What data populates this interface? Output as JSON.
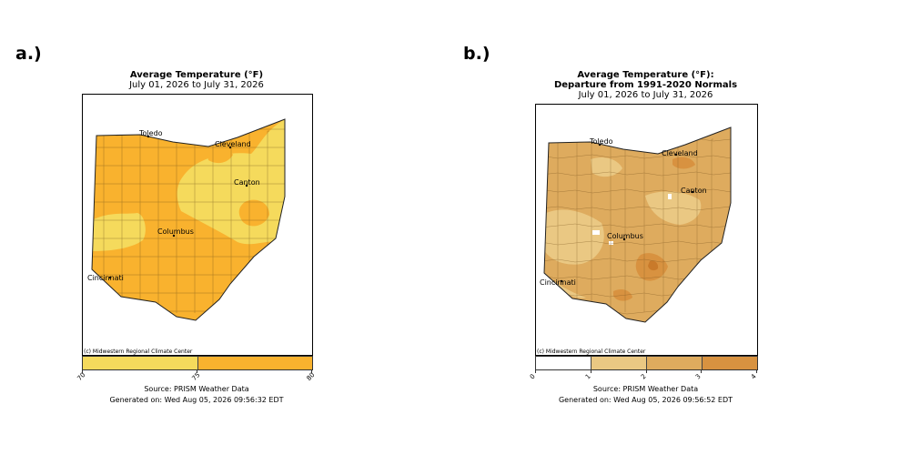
{
  "panels": [
    {
      "label": "a.)",
      "title": "Average Temperature (°F)",
      "subtitle": "July 01, 2026 to July 31, 2026",
      "credit": "(c) Midwestern Regional Climate Center",
      "colorbar": {
        "ticks": [
          "70",
          "75",
          "80"
        ],
        "bins": [
          {
            "from": 70,
            "to": 75,
            "color": "#f5da5c"
          },
          {
            "from": 75,
            "to": 80,
            "color": "#f9b22e"
          }
        ]
      },
      "base_color": "#f9b22e",
      "source": "Source: PRISM Weather Data",
      "generated": "Generated on: Wed Aug 05, 2026 09:56:32 EDT",
      "cities": [
        "Toledo",
        "Cleveland",
        "Canton",
        "Columbus",
        "Cincinnati"
      ]
    },
    {
      "label": "b.)",
      "title": "Average Temperature (°F):",
      "title2": "Departure from 1991-2020 Normals",
      "subtitle": "July 01, 2026 to July 31, 2026",
      "credit": "(c) Midwestern Regional Climate Center",
      "colorbar": {
        "ticks": [
          "0",
          "1",
          "2",
          "3",
          "4"
        ],
        "bins": [
          {
            "from": 0,
            "to": 1,
            "color": "#ffffff"
          },
          {
            "from": 1,
            "to": 2,
            "color": "#eac883"
          },
          {
            "from": 2,
            "to": 3,
            "color": "#deab5e"
          },
          {
            "from": 3,
            "to": 4,
            "color": "#d89240"
          }
        ]
      },
      "base_color": "#deab5e",
      "source": "Source: PRISM Weather Data",
      "generated": "Generated on: Wed Aug 05, 2026 09:56:52 EDT",
      "cities": [
        "Toledo",
        "Cleveland",
        "Canton",
        "Columbus",
        "Cincinnati"
      ]
    }
  ]
}
